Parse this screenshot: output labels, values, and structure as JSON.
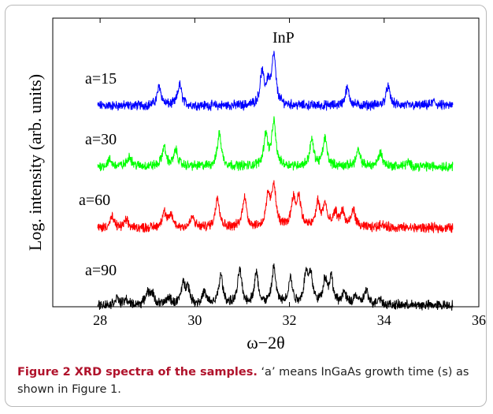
{
  "chart_data": {
    "type": "line",
    "xlabel": "ω−2θ",
    "ylabel": "Log. intensity (arb. units)",
    "xlim": [
      27,
      36
    ],
    "xticks": [
      "28",
      "30",
      "32",
      "34",
      "36"
    ],
    "annotation": "InP",
    "series": [
      {
        "name": "a=15",
        "color": "#0000ff",
        "peaks": [
          [
            29.25,
            0.55
          ],
          [
            29.68,
            0.6
          ],
          [
            31.42,
            0.9
          ],
          [
            31.55,
            0.55
          ],
          [
            31.67,
            1.4
          ],
          [
            33.22,
            0.5
          ],
          [
            34.08,
            0.55
          ],
          [
            35.05,
            0.12
          ]
        ]
      },
      {
        "name": "a=30",
        "color": "#00ff00",
        "peaks": [
          [
            28.2,
            0.18
          ],
          [
            28.62,
            0.3
          ],
          [
            29.35,
            0.55
          ],
          [
            29.6,
            0.45
          ],
          [
            30.52,
            0.95
          ],
          [
            31.5,
            0.9
          ],
          [
            31.67,
            1.25
          ],
          [
            32.47,
            0.75
          ],
          [
            32.75,
            0.8
          ],
          [
            33.45,
            0.45
          ],
          [
            33.92,
            0.4
          ],
          [
            34.5,
            0.1
          ]
        ]
      },
      {
        "name": "a=60",
        "color": "#ff0000",
        "peaks": [
          [
            28.25,
            0.3
          ],
          [
            28.55,
            0.2
          ],
          [
            29.35,
            0.45
          ],
          [
            29.5,
            0.35
          ],
          [
            29.95,
            0.3
          ],
          [
            30.48,
            0.9
          ],
          [
            31.05,
            0.9
          ],
          [
            31.55,
            0.85
          ],
          [
            31.67,
            1.2
          ],
          [
            32.08,
            0.8
          ],
          [
            32.2,
            0.85
          ],
          [
            32.6,
            0.7
          ],
          [
            32.75,
            0.65
          ],
          [
            32.97,
            0.4
          ],
          [
            33.12,
            0.45
          ],
          [
            33.35,
            0.5
          ],
          [
            33.95,
            0.12
          ]
        ]
      },
      {
        "name": "a=90",
        "color": "#000000",
        "peaks": [
          [
            28.35,
            0.2
          ],
          [
            28.55,
            0.15
          ],
          [
            29.0,
            0.35
          ],
          [
            29.1,
            0.3
          ],
          [
            29.45,
            0.2
          ],
          [
            29.75,
            0.55
          ],
          [
            29.85,
            0.5
          ],
          [
            30.2,
            0.35
          ],
          [
            30.55,
            0.85
          ],
          [
            30.95,
            1.0
          ],
          [
            31.3,
            0.9
          ],
          [
            31.67,
            1.05
          ],
          [
            32.02,
            0.75
          ],
          [
            32.35,
            0.85
          ],
          [
            32.45,
            0.8
          ],
          [
            32.75,
            0.7
          ],
          [
            32.88,
            0.75
          ],
          [
            33.15,
            0.35
          ],
          [
            33.4,
            0.25
          ],
          [
            33.62,
            0.4
          ],
          [
            33.9,
            0.2
          ]
        ]
      }
    ]
  },
  "caption": {
    "title": "Figure 2 XRD spectra of the samples.",
    "text": "‘a’ means InGaAs growth time (s) as shown in Figure 1."
  }
}
